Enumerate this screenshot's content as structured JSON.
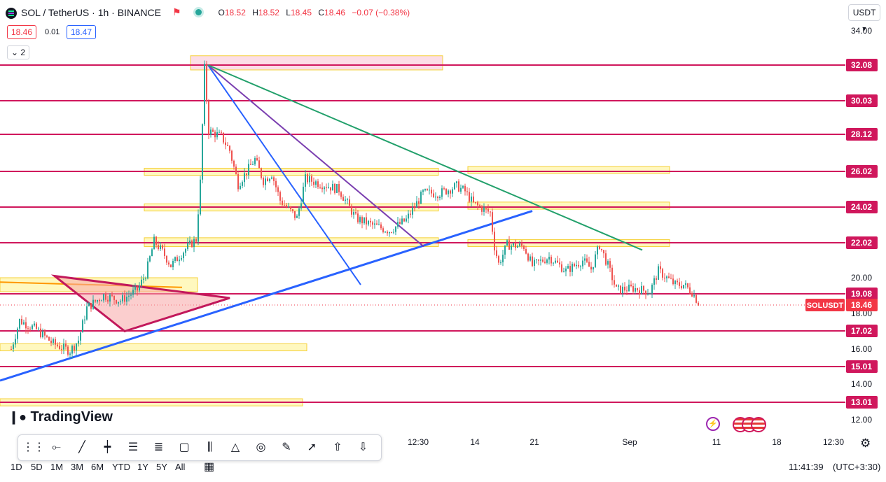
{
  "header": {
    "symbol": "SOL / TetherUS · 1h · BINANCE",
    "open_label": "O",
    "open": "18.52",
    "high_label": "H",
    "high": "18.52",
    "low_label": "L",
    "low": "18.45",
    "close_label": "C",
    "close": "18.46",
    "change": "−0.07 (−0.38%)",
    "sell_price": "18.46",
    "spread": "0.01",
    "buy_price": "18.47",
    "indicator_toggle": "2",
    "currency_button": "USDT"
  },
  "colors": {
    "hline": "#d0175c",
    "zone_fill": "#fff59d",
    "zone_border": "#f5d03a",
    "up": "#26a69a",
    "down": "#ef5350",
    "blue_line": "#2962ff",
    "purple_line": "#7b3fb0",
    "green_line": "#22a06b",
    "orange_line": "#ff9800",
    "price_label_bg": "#d0175c",
    "current_price_bg": "#f23645"
  },
  "chart_data": {
    "type": "candlestick",
    "symbol": "SOLUSDT",
    "timeframe": "1h",
    "ylim": [
      11.5,
      34.5
    ],
    "y_ticks": [
      12.0,
      14.0,
      16.0,
      18.0,
      20.0,
      34.0
    ],
    "y_tick_labels": [
      "12.00",
      "14.00",
      "16.00",
      "18.00",
      "20.00",
      "34.00"
    ],
    "x_ticks": [
      {
        "label": "12:30",
        "px": 597
      },
      {
        "label": "14",
        "px": 678
      },
      {
        "label": "21",
        "px": 763
      },
      {
        "label": "Sep",
        "px": 899
      },
      {
        "label": "11",
        "px": 1023
      },
      {
        "label": "18",
        "px": 1109
      },
      {
        "label": "12:30",
        "px": 1190
      }
    ],
    "horizontal_levels": [
      {
        "value": 32.08,
        "label": "32.08"
      },
      {
        "value": 30.03,
        "label": "30.03"
      },
      {
        "value": 28.12,
        "label": "28.12"
      },
      {
        "value": 26.02,
        "label": "26.02"
      },
      {
        "value": 24.02,
        "label": "24.02"
      },
      {
        "value": 22.02,
        "label": "22.02"
      },
      {
        "value": 19.08,
        "label": "19.08"
      },
      {
        "value": 17.02,
        "label": "17.02"
      },
      {
        "value": 15.01,
        "label": "15.01"
      },
      {
        "value": 13.01,
        "label": "13.01"
      }
    ],
    "current_price": {
      "value": 18.46,
      "label": "18.46",
      "symbol_tag": "SOLUSDT"
    },
    "price_path": [
      [
        0.01,
        16.0
      ],
      [
        0.02,
        17.6
      ],
      [
        0.04,
        17.1
      ],
      [
        0.06,
        16.3
      ],
      [
        0.08,
        15.9
      ],
      [
        0.09,
        16.5
      ],
      [
        0.1,
        18.3
      ],
      [
        0.12,
        19.0
      ],
      [
        0.14,
        18.7
      ],
      [
        0.16,
        19.3
      ],
      [
        0.17,
        20.2
      ],
      [
        0.18,
        22.1
      ],
      [
        0.19,
        21.5
      ],
      [
        0.2,
        20.7
      ],
      [
        0.22,
        21.8
      ],
      [
        0.23,
        22.2
      ],
      [
        0.235,
        25.4
      ],
      [
        0.24,
        31.9
      ],
      [
        0.245,
        28.3
      ],
      [
        0.26,
        28.0
      ],
      [
        0.27,
        27.2
      ],
      [
        0.28,
        25.3
      ],
      [
        0.3,
        26.7
      ],
      [
        0.31,
        25.5
      ],
      [
        0.32,
        25.9
      ],
      [
        0.33,
        24.4
      ],
      [
        0.35,
        23.4
      ],
      [
        0.36,
        25.6
      ],
      [
        0.38,
        25.3
      ],
      [
        0.4,
        25.0
      ],
      [
        0.42,
        23.4
      ],
      [
        0.44,
        23.0
      ],
      [
        0.46,
        22.7
      ],
      [
        0.48,
        23.3
      ],
      [
        0.5,
        24.8
      ],
      [
        0.52,
        24.8
      ],
      [
        0.54,
        25.2
      ],
      [
        0.55,
        24.9
      ],
      [
        0.56,
        24.2
      ],
      [
        0.58,
        23.7
      ],
      [
        0.585,
        21.8
      ],
      [
        0.59,
        20.8
      ],
      [
        0.6,
        21.9
      ],
      [
        0.62,
        21.8
      ],
      [
        0.63,
        20.7
      ],
      [
        0.65,
        21.2
      ],
      [
        0.67,
        20.4
      ],
      [
        0.69,
        21.0
      ],
      [
        0.7,
        20.5
      ],
      [
        0.71,
        21.9
      ],
      [
        0.72,
        20.7
      ],
      [
        0.73,
        19.3
      ],
      [
        0.75,
        19.4
      ],
      [
        0.77,
        19.2
      ],
      [
        0.78,
        20.4
      ],
      [
        0.8,
        19.6
      ],
      [
        0.81,
        19.6
      ],
      [
        0.82,
        19.2
      ],
      [
        0.83,
        18.4
      ]
    ],
    "zones": [
      {
        "from": 31.8,
        "to": 32.6,
        "x0": 0.21,
        "x1": 0.51,
        "style": "pink"
      },
      {
        "from": 25.8,
        "to": 26.2,
        "x0": 0.155,
        "x1": 0.505
      },
      {
        "from": 23.8,
        "to": 24.2,
        "x0": 0.155,
        "x1": 0.505
      },
      {
        "from": 21.8,
        "to": 22.3,
        "x0": 0.155,
        "x1": 0.505
      },
      {
        "from": 25.9,
        "to": 26.3,
        "x0": 0.54,
        "x1": 0.78
      },
      {
        "from": 23.9,
        "to": 24.3,
        "x0": 0.54,
        "x1": 0.78
      },
      {
        "from": 21.8,
        "to": 22.2,
        "x0": 0.54,
        "x1": 0.78
      },
      {
        "from": 19.2,
        "to": 20.0,
        "x0": 0.0,
        "x1": 0.235
      },
      {
        "from": 15.9,
        "to": 16.3,
        "x0": 0.0,
        "x1": 0.365
      },
      {
        "from": 12.8,
        "to": 13.2,
        "x0": 0.0,
        "x1": 0.36
      }
    ]
  },
  "overlay": {
    "symbol_tag": "SOLUSDT",
    "current_price_label": "18.46",
    "watermark": "TradingView"
  },
  "ranges": [
    "1D",
    "5D",
    "1M",
    "3M",
    "6M",
    "YTD",
    "1Y",
    "5Y",
    "All"
  ],
  "clock": "11:41:39",
  "timezone": "(UTC+3:30)",
  "tools": [
    "drag-handle-icon",
    "horizontal-ray-icon",
    "trend-line-icon",
    "vertical-line-icon",
    "fib-retracement-icon",
    "fib-extension-icon",
    "rectangle-icon",
    "parallel-channel-icon",
    "pattern-icon",
    "circle-icon",
    "brush-icon",
    "arrow-icon",
    "arrow-up-icon",
    "arrow-down-icon"
  ]
}
